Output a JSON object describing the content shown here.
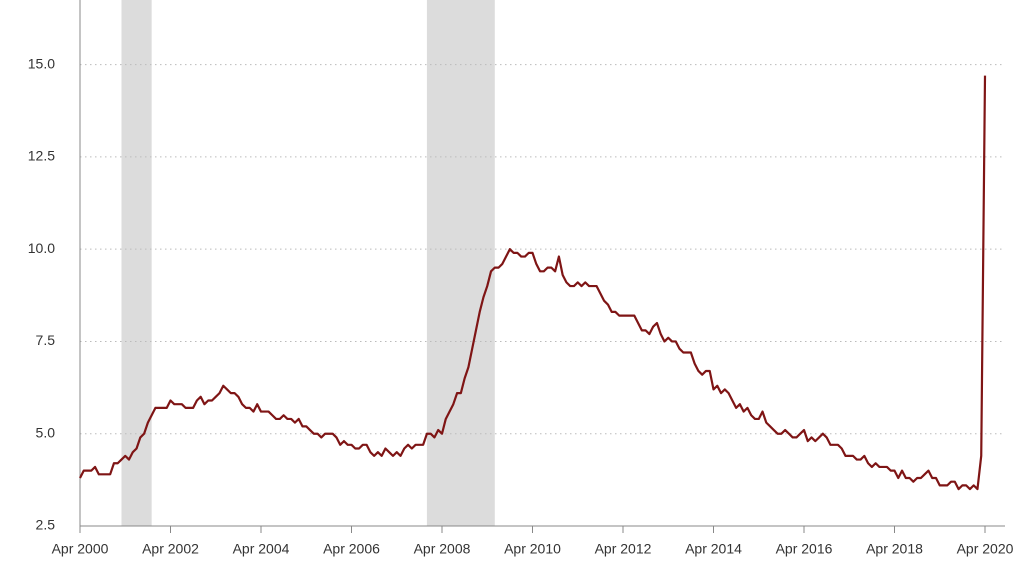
{
  "chart_data": {
    "type": "line",
    "color": "#7f1515",
    "recession_color": "#dcdcdc",
    "grid": true,
    "xlim": [
      "2000-04",
      "2020-04"
    ],
    "xticks": [
      {
        "value": "2000-04",
        "label": "Apr 2000"
      },
      {
        "value": "2002-04",
        "label": "Apr 2002"
      },
      {
        "value": "2004-04",
        "label": "Apr 2004"
      },
      {
        "value": "2006-04",
        "label": "Apr 2006"
      },
      {
        "value": "2008-04",
        "label": "Apr 2008"
      },
      {
        "value": "2010-04",
        "label": "Apr 2010"
      },
      {
        "value": "2012-04",
        "label": "Apr 2012"
      },
      {
        "value": "2014-04",
        "label": "Apr 2014"
      },
      {
        "value": "2016-04",
        "label": "Apr 2016"
      },
      {
        "value": "2018-04",
        "label": "Apr 2018"
      },
      {
        "value": "2020-04",
        "label": "Apr 2020"
      }
    ],
    "ylim": [
      2.5,
      16.75
    ],
    "yticks": [
      2.5,
      {
        "value": 5,
        "label": "5.0"
      },
      7.5,
      {
        "value": 10,
        "label": "10.0"
      },
      12.5,
      {
        "value": 15,
        "label": "15.0"
      }
    ],
    "recessions": [
      [
        "2001-03",
        "2001-11"
      ],
      [
        "2007-12",
        "2009-06"
      ]
    ],
    "x": [
      "2000-04",
      "2000-05",
      "2000-06",
      "2000-07",
      "2000-08",
      "2000-09",
      "2000-10",
      "2000-11",
      "2000-12",
      "2001-01",
      "2001-02",
      "2001-03",
      "2001-04",
      "2001-05",
      "2001-06",
      "2001-07",
      "2001-08",
      "2001-09",
      "2001-10",
      "2001-11",
      "2001-12",
      "2002-01",
      "2002-02",
      "2002-03",
      "2002-04",
      "2002-05",
      "2002-06",
      "2002-07",
      "2002-08",
      "2002-09",
      "2002-10",
      "2002-11",
      "2002-12",
      "2003-01",
      "2003-02",
      "2003-03",
      "2003-04",
      "2003-05",
      "2003-06",
      "2003-07",
      "2003-08",
      "2003-09",
      "2003-10",
      "2003-11",
      "2003-12",
      "2004-01",
      "2004-02",
      "2004-03",
      "2004-04",
      "2004-05",
      "2004-06",
      "2004-07",
      "2004-08",
      "2004-09",
      "2004-10",
      "2004-11",
      "2004-12",
      "2005-01",
      "2005-02",
      "2005-03",
      "2005-04",
      "2005-05",
      "2005-06",
      "2005-07",
      "2005-08",
      "2005-09",
      "2005-10",
      "2005-11",
      "2005-12",
      "2006-01",
      "2006-02",
      "2006-03",
      "2006-04",
      "2006-05",
      "2006-06",
      "2006-07",
      "2006-08",
      "2006-09",
      "2006-10",
      "2006-11",
      "2006-12",
      "2007-01",
      "2007-02",
      "2007-03",
      "2007-04",
      "2007-05",
      "2007-06",
      "2007-07",
      "2007-08",
      "2007-09",
      "2007-10",
      "2007-11",
      "2007-12",
      "2008-01",
      "2008-02",
      "2008-03",
      "2008-04",
      "2008-05",
      "2008-06",
      "2008-07",
      "2008-08",
      "2008-09",
      "2008-10",
      "2008-11",
      "2008-12",
      "2009-01",
      "2009-02",
      "2009-03",
      "2009-04",
      "2009-05",
      "2009-06",
      "2009-07",
      "2009-08",
      "2009-09",
      "2009-10",
      "2009-11",
      "2009-12",
      "2010-01",
      "2010-02",
      "2010-03",
      "2010-04",
      "2010-05",
      "2010-06",
      "2010-07",
      "2010-08",
      "2010-09",
      "2010-10",
      "2010-11",
      "2010-12",
      "2011-01",
      "2011-02",
      "2011-03",
      "2011-04",
      "2011-05",
      "2011-06",
      "2011-07",
      "2011-08",
      "2011-09",
      "2011-10",
      "2011-11",
      "2011-12",
      "2012-01",
      "2012-02",
      "2012-03",
      "2012-04",
      "2012-05",
      "2012-06",
      "2012-07",
      "2012-08",
      "2012-09",
      "2012-10",
      "2012-11",
      "2012-12",
      "2013-01",
      "2013-02",
      "2013-03",
      "2013-04",
      "2013-05",
      "2013-06",
      "2013-07",
      "2013-08",
      "2013-09",
      "2013-10",
      "2013-11",
      "2013-12",
      "2014-01",
      "2014-02",
      "2014-03",
      "2014-04",
      "2014-05",
      "2014-06",
      "2014-07",
      "2014-08",
      "2014-09",
      "2014-10",
      "2014-11",
      "2014-12",
      "2015-01",
      "2015-02",
      "2015-03",
      "2015-04",
      "2015-05",
      "2015-06",
      "2015-07",
      "2015-08",
      "2015-09",
      "2015-10",
      "2015-11",
      "2015-12",
      "2016-01",
      "2016-02",
      "2016-03",
      "2016-04",
      "2016-05",
      "2016-06",
      "2016-07",
      "2016-08",
      "2016-09",
      "2016-10",
      "2016-11",
      "2016-12",
      "2017-01",
      "2017-02",
      "2017-03",
      "2017-04",
      "2017-05",
      "2017-06",
      "2017-07",
      "2017-08",
      "2017-09",
      "2017-10",
      "2017-11",
      "2017-12",
      "2018-01",
      "2018-02",
      "2018-03",
      "2018-04",
      "2018-05",
      "2018-06",
      "2018-07",
      "2018-08",
      "2018-09",
      "2018-10",
      "2018-11",
      "2018-12",
      "2019-01",
      "2019-02",
      "2019-03",
      "2019-04",
      "2019-05",
      "2019-06",
      "2019-07",
      "2019-08",
      "2019-09",
      "2019-10",
      "2019-11",
      "2019-12",
      "2020-01",
      "2020-02",
      "2020-03",
      "2020-04"
    ],
    "values": [
      3.8,
      4.0,
      4.0,
      4.0,
      4.1,
      3.9,
      3.9,
      3.9,
      3.9,
      4.2,
      4.2,
      4.3,
      4.4,
      4.3,
      4.5,
      4.6,
      4.9,
      5.0,
      5.3,
      5.5,
      5.7,
      5.7,
      5.7,
      5.7,
      5.9,
      5.8,
      5.8,
      5.8,
      5.7,
      5.7,
      5.7,
      5.9,
      6.0,
      5.8,
      5.9,
      5.9,
      6.0,
      6.1,
      6.3,
      6.2,
      6.1,
      6.1,
      6.0,
      5.8,
      5.7,
      5.7,
      5.6,
      5.8,
      5.6,
      5.6,
      5.6,
      5.5,
      5.4,
      5.4,
      5.5,
      5.4,
      5.4,
      5.3,
      5.4,
      5.2,
      5.2,
      5.1,
      5.0,
      5.0,
      4.9,
      5.0,
      5.0,
      5.0,
      4.9,
      4.7,
      4.8,
      4.7,
      4.7,
      4.6,
      4.6,
      4.7,
      4.7,
      4.5,
      4.4,
      4.5,
      4.4,
      4.6,
      4.5,
      4.4,
      4.5,
      4.4,
      4.6,
      4.7,
      4.6,
      4.7,
      4.7,
      4.7,
      5.0,
      5.0,
      4.9,
      5.1,
      5.0,
      5.4,
      5.6,
      5.8,
      6.1,
      6.1,
      6.5,
      6.8,
      7.3,
      7.8,
      8.3,
      8.7,
      9.0,
      9.4,
      9.5,
      9.5,
      9.6,
      9.8,
      10.0,
      9.9,
      9.9,
      9.8,
      9.8,
      9.9,
      9.9,
      9.6,
      9.4,
      9.4,
      9.5,
      9.5,
      9.4,
      9.8,
      9.3,
      9.1,
      9.0,
      9.0,
      9.1,
      9.0,
      9.1,
      9.0,
      9.0,
      9.0,
      8.8,
      8.6,
      8.5,
      8.3,
      8.3,
      8.2,
      8.2,
      8.2,
      8.2,
      8.2,
      8.0,
      7.8,
      7.8,
      7.7,
      7.9,
      8.0,
      7.7,
      7.5,
      7.6,
      7.5,
      7.5,
      7.3,
      7.2,
      7.2,
      7.2,
      6.9,
      6.7,
      6.6,
      6.7,
      6.7,
      6.2,
      6.3,
      6.1,
      6.2,
      6.1,
      5.9,
      5.7,
      5.8,
      5.6,
      5.7,
      5.5,
      5.4,
      5.4,
      5.6,
      5.3,
      5.2,
      5.1,
      5.0,
      5.0,
      5.1,
      5.0,
      4.9,
      4.9,
      5.0,
      5.1,
      4.8,
      4.9,
      4.8,
      4.9,
      5.0,
      4.9,
      4.7,
      4.7,
      4.7,
      4.6,
      4.4,
      4.4,
      4.4,
      4.3,
      4.3,
      4.4,
      4.2,
      4.1,
      4.2,
      4.1,
      4.1,
      4.1,
      4.0,
      4.0,
      3.8,
      4.0,
      3.8,
      3.8,
      3.7,
      3.8,
      3.8,
      3.9,
      4.0,
      3.8,
      3.8,
      3.6,
      3.6,
      3.6,
      3.7,
      3.7,
      3.5,
      3.6,
      3.6,
      3.5,
      3.6,
      3.5,
      4.4,
      14.7
    ]
  }
}
